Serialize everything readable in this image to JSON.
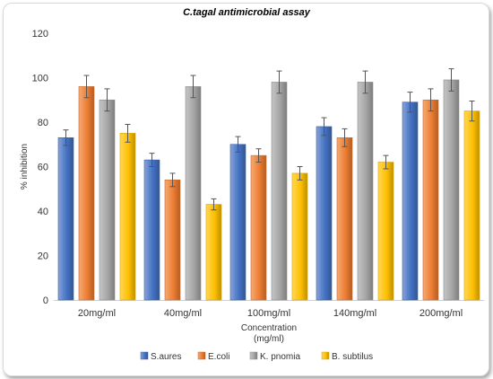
{
  "chart_data": {
    "type": "bar",
    "title": "C.tagal antimicrobial assay",
    "xlabel": "Concentration\n(mg/ml)",
    "ylabel": "% inhibition",
    "ylim": [
      0,
      120
    ],
    "yticks": [
      0,
      20,
      40,
      60,
      80,
      100,
      120
    ],
    "grid": false,
    "legend_position": "bottom",
    "error_bars": true,
    "categories": [
      "20mg/ml",
      "40mg/ml",
      "100mg/ml",
      "140mg/ml",
      "200mg/ml"
    ],
    "series": [
      {
        "name": "S.aures",
        "color": "#4472c4",
        "values": [
          73,
          63,
          70,
          78,
          89
        ],
        "errors": [
          3.5,
          3,
          3.5,
          4,
          4.5
        ]
      },
      {
        "name": "E.coli",
        "color": "#ed7d31",
        "values": [
          96,
          54,
          65,
          73,
          90
        ],
        "errors": [
          5,
          3,
          3,
          4,
          5
        ]
      },
      {
        "name": "K. pnomia",
        "color": "#a5a5a5",
        "values": [
          90,
          96,
          98,
          98,
          99
        ],
        "errors": [
          5,
          5,
          5,
          5,
          5
        ]
      },
      {
        "name": "B. subtilus",
        "color": "#ffc000",
        "values": [
          75,
          43,
          57,
          62,
          85
        ],
        "errors": [
          4,
          2.5,
          3,
          3,
          4.5
        ]
      }
    ]
  }
}
